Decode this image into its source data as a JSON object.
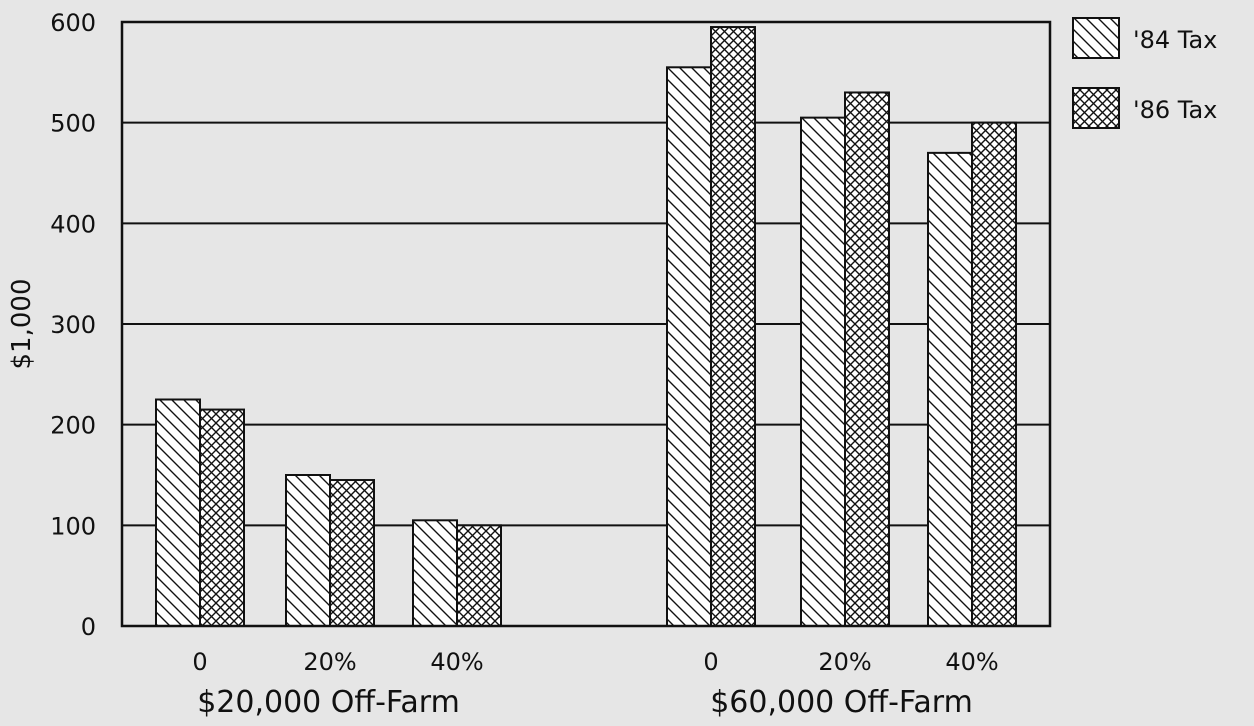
{
  "chart_data": {
    "type": "bar",
    "title": "",
    "xlabel": "",
    "ylabel": "$1,000",
    "ylim": [
      0,
      600
    ],
    "yticks": [
      0,
      100,
      200,
      300,
      400,
      500,
      600
    ],
    "grid": true,
    "legend_position": "top-right",
    "categories": [
      "0",
      "20%",
      "40%",
      "0",
      "20%",
      "40%"
    ],
    "groups": [
      {
        "label": "$20,000 Off-Farm",
        "category_indices": [
          0,
          1,
          2
        ]
      },
      {
        "label": "$60,000 Off-Farm",
        "category_indices": [
          3,
          4,
          5
        ]
      }
    ],
    "series": [
      {
        "name": "'84 Tax",
        "pattern": "diagonal-hatch",
        "values": [
          225,
          150,
          105,
          555,
          505,
          470
        ]
      },
      {
        "name": "'86 Tax",
        "pattern": "cross-hatch",
        "values": [
          215,
          145,
          100,
          595,
          530,
          500
        ]
      }
    ]
  }
}
